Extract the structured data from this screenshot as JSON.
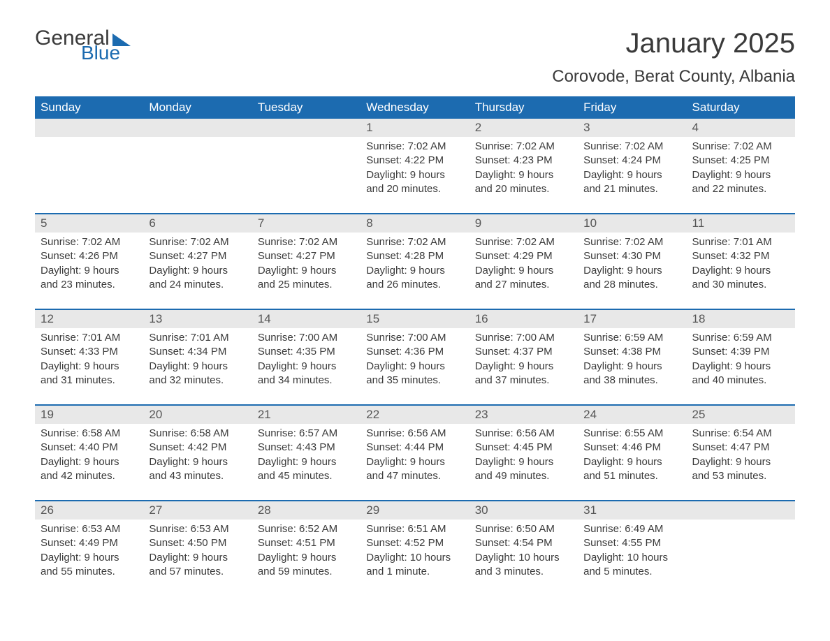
{
  "logo": {
    "general": "General",
    "blue": "Blue"
  },
  "title": "January 2025",
  "subtitle": "Corovode, Berat County, Albania",
  "colors": {
    "header_bg": "#1c6bb0",
    "header_text": "#ffffff",
    "daynum_bg": "#e8e8e8",
    "daynum_text": "#565656",
    "body_text": "#3a3a3a",
    "row_border": "#1c6bb0",
    "page_bg": "#ffffff"
  },
  "typography": {
    "title_fontsize": 40,
    "subtitle_fontsize": 24,
    "header_fontsize": 17,
    "daynum_fontsize": 17,
    "body_fontsize": 15,
    "font_family": "Arial"
  },
  "weekdays": [
    "Sunday",
    "Monday",
    "Tuesday",
    "Wednesday",
    "Thursday",
    "Friday",
    "Saturday"
  ],
  "labels": {
    "sunrise": "Sunrise:",
    "sunset": "Sunset:",
    "daylight": "Daylight:"
  },
  "weeks": [
    [
      null,
      null,
      null,
      {
        "day": "1",
        "sunrise": "7:02 AM",
        "sunset": "4:22 PM",
        "daylight": "9 hours and 20 minutes."
      },
      {
        "day": "2",
        "sunrise": "7:02 AM",
        "sunset": "4:23 PM",
        "daylight": "9 hours and 20 minutes."
      },
      {
        "day": "3",
        "sunrise": "7:02 AM",
        "sunset": "4:24 PM",
        "daylight": "9 hours and 21 minutes."
      },
      {
        "day": "4",
        "sunrise": "7:02 AM",
        "sunset": "4:25 PM",
        "daylight": "9 hours and 22 minutes."
      }
    ],
    [
      {
        "day": "5",
        "sunrise": "7:02 AM",
        "sunset": "4:26 PM",
        "daylight": "9 hours and 23 minutes."
      },
      {
        "day": "6",
        "sunrise": "7:02 AM",
        "sunset": "4:27 PM",
        "daylight": "9 hours and 24 minutes."
      },
      {
        "day": "7",
        "sunrise": "7:02 AM",
        "sunset": "4:27 PM",
        "daylight": "9 hours and 25 minutes."
      },
      {
        "day": "8",
        "sunrise": "7:02 AM",
        "sunset": "4:28 PM",
        "daylight": "9 hours and 26 minutes."
      },
      {
        "day": "9",
        "sunrise": "7:02 AM",
        "sunset": "4:29 PM",
        "daylight": "9 hours and 27 minutes."
      },
      {
        "day": "10",
        "sunrise": "7:02 AM",
        "sunset": "4:30 PM",
        "daylight": "9 hours and 28 minutes."
      },
      {
        "day": "11",
        "sunrise": "7:01 AM",
        "sunset": "4:32 PM",
        "daylight": "9 hours and 30 minutes."
      }
    ],
    [
      {
        "day": "12",
        "sunrise": "7:01 AM",
        "sunset": "4:33 PM",
        "daylight": "9 hours and 31 minutes."
      },
      {
        "day": "13",
        "sunrise": "7:01 AM",
        "sunset": "4:34 PM",
        "daylight": "9 hours and 32 minutes."
      },
      {
        "day": "14",
        "sunrise": "7:00 AM",
        "sunset": "4:35 PM",
        "daylight": "9 hours and 34 minutes."
      },
      {
        "day": "15",
        "sunrise": "7:00 AM",
        "sunset": "4:36 PM",
        "daylight": "9 hours and 35 minutes."
      },
      {
        "day": "16",
        "sunrise": "7:00 AM",
        "sunset": "4:37 PM",
        "daylight": "9 hours and 37 minutes."
      },
      {
        "day": "17",
        "sunrise": "6:59 AM",
        "sunset": "4:38 PM",
        "daylight": "9 hours and 38 minutes."
      },
      {
        "day": "18",
        "sunrise": "6:59 AM",
        "sunset": "4:39 PM",
        "daylight": "9 hours and 40 minutes."
      }
    ],
    [
      {
        "day": "19",
        "sunrise": "6:58 AM",
        "sunset": "4:40 PM",
        "daylight": "9 hours and 42 minutes."
      },
      {
        "day": "20",
        "sunrise": "6:58 AM",
        "sunset": "4:42 PM",
        "daylight": "9 hours and 43 minutes."
      },
      {
        "day": "21",
        "sunrise": "6:57 AM",
        "sunset": "4:43 PM",
        "daylight": "9 hours and 45 minutes."
      },
      {
        "day": "22",
        "sunrise": "6:56 AM",
        "sunset": "4:44 PM",
        "daylight": "9 hours and 47 minutes."
      },
      {
        "day": "23",
        "sunrise": "6:56 AM",
        "sunset": "4:45 PM",
        "daylight": "9 hours and 49 minutes."
      },
      {
        "day": "24",
        "sunrise": "6:55 AM",
        "sunset": "4:46 PM",
        "daylight": "9 hours and 51 minutes."
      },
      {
        "day": "25",
        "sunrise": "6:54 AM",
        "sunset": "4:47 PM",
        "daylight": "9 hours and 53 minutes."
      }
    ],
    [
      {
        "day": "26",
        "sunrise": "6:53 AM",
        "sunset": "4:49 PM",
        "daylight": "9 hours and 55 minutes."
      },
      {
        "day": "27",
        "sunrise": "6:53 AM",
        "sunset": "4:50 PM",
        "daylight": "9 hours and 57 minutes."
      },
      {
        "day": "28",
        "sunrise": "6:52 AM",
        "sunset": "4:51 PM",
        "daylight": "9 hours and 59 minutes."
      },
      {
        "day": "29",
        "sunrise": "6:51 AM",
        "sunset": "4:52 PM",
        "daylight": "10 hours and 1 minute."
      },
      {
        "day": "30",
        "sunrise": "6:50 AM",
        "sunset": "4:54 PM",
        "daylight": "10 hours and 3 minutes."
      },
      {
        "day": "31",
        "sunrise": "6:49 AM",
        "sunset": "4:55 PM",
        "daylight": "10 hours and 5 minutes."
      },
      null
    ]
  ]
}
